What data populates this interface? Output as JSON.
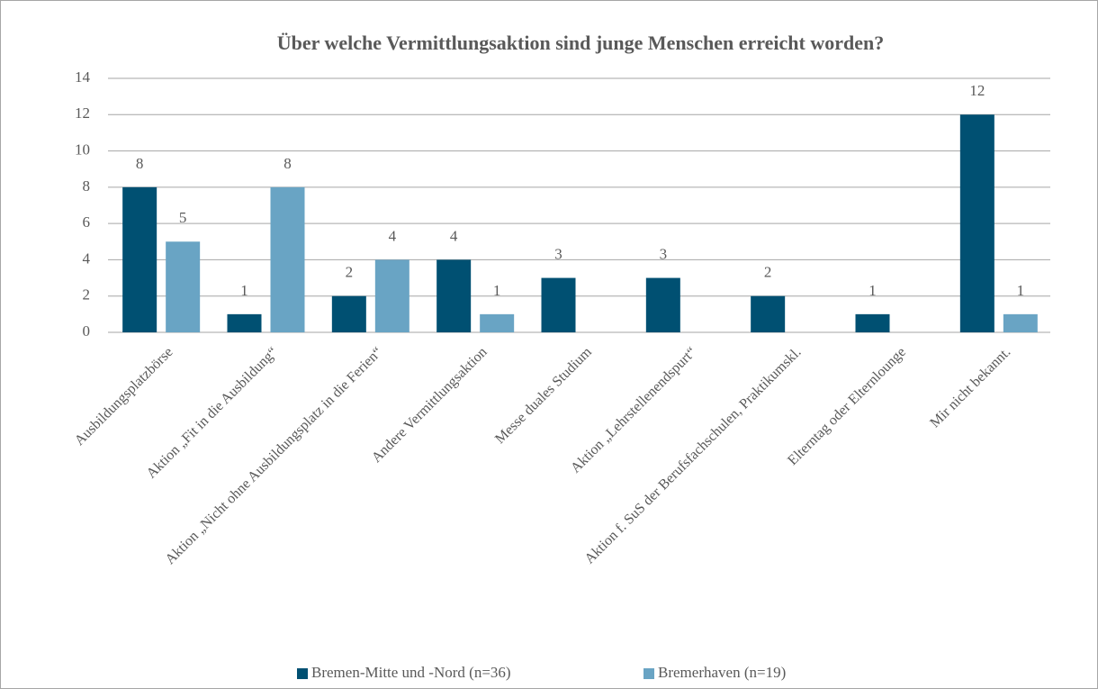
{
  "chart_data": {
    "type": "bar",
    "title": "Über welche Vermittlungsaktion sind junge Menschen erreicht worden?",
    "categories": [
      "Ausbildungsplatzbörse",
      "Aktion „Fit in die Ausbildung“",
      "Aktion „Nicht ohne Ausbildungsplatz in die Ferien“",
      "Andere Vermittlungsaktion",
      "Messe duales Studium",
      "Aktion „Lehrstellenendspurt“",
      "Aktion f. SuS der Berufsfachschulen, Praktikumskl.",
      "Elterntag oder Elternlounge",
      "Mir nicht bekannt."
    ],
    "series": [
      {
        "name": "Bremen-Mitte und -Nord (n=36)",
        "color": "#005072",
        "values": [
          8,
          1,
          2,
          4,
          3,
          3,
          2,
          1,
          12
        ]
      },
      {
        "name": "Bremerhaven (n=19)",
        "color": "#69a4c4",
        "values": [
          5,
          8,
          4,
          1,
          null,
          null,
          null,
          null,
          1
        ]
      }
    ],
    "ylim": [
      0,
      14
    ],
    "yticks": [
      0,
      2,
      4,
      6,
      8,
      10,
      12,
      14
    ],
    "grid": true,
    "legend": "bottom"
  }
}
